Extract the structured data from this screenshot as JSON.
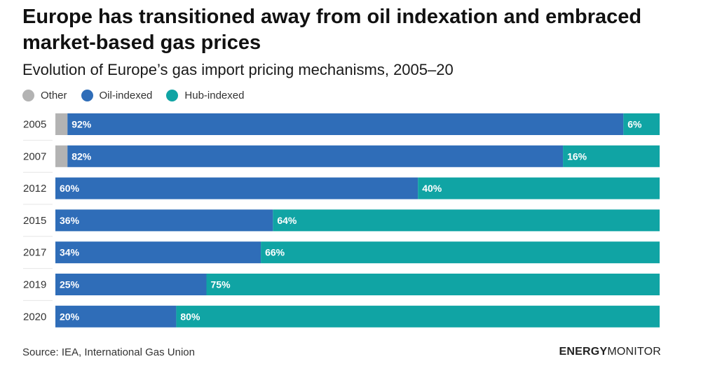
{
  "title": "Europe has transitioned away from oil indexation and embraced market-based gas prices",
  "subtitle": "Evolution of Europe’s gas import pricing mechanisms, 2005–20",
  "legend": [
    {
      "label": "Other",
      "color": "#b3b3b3"
    },
    {
      "label": "Oil-indexed",
      "color": "#2f6db8"
    },
    {
      "label": "Hub-indexed",
      "color": "#10a4a4"
    }
  ],
  "chart_data": {
    "type": "bar",
    "orientation": "horizontal",
    "stacked": true,
    "categories": [
      "2005",
      "2007",
      "2012",
      "2015",
      "2017",
      "2019",
      "2020"
    ],
    "series": [
      {
        "name": "Other",
        "values": [
          2,
          2,
          0,
          0,
          0,
          0,
          0
        ]
      },
      {
        "name": "Oil-indexed",
        "values": [
          92,
          82,
          60,
          36,
          34,
          25,
          20
        ]
      },
      {
        "name": "Hub-indexed",
        "values": [
          6,
          16,
          40,
          64,
          66,
          75,
          80
        ]
      }
    ],
    "data_labels": {
      "Oil-indexed": [
        "92%",
        "82%",
        "60%",
        "36%",
        "34%",
        "25%",
        "20%"
      ],
      "Hub-indexed": [
        "6%",
        "16%",
        "40%",
        "64%",
        "66%",
        "75%",
        "80%"
      ]
    },
    "xlim": [
      0,
      100
    ],
    "grid": false,
    "legend_position": "top-left"
  },
  "source": "Source: IEA, International Gas Union",
  "brand": {
    "part1": "ENERGY",
    "part2": "MONITOR"
  }
}
